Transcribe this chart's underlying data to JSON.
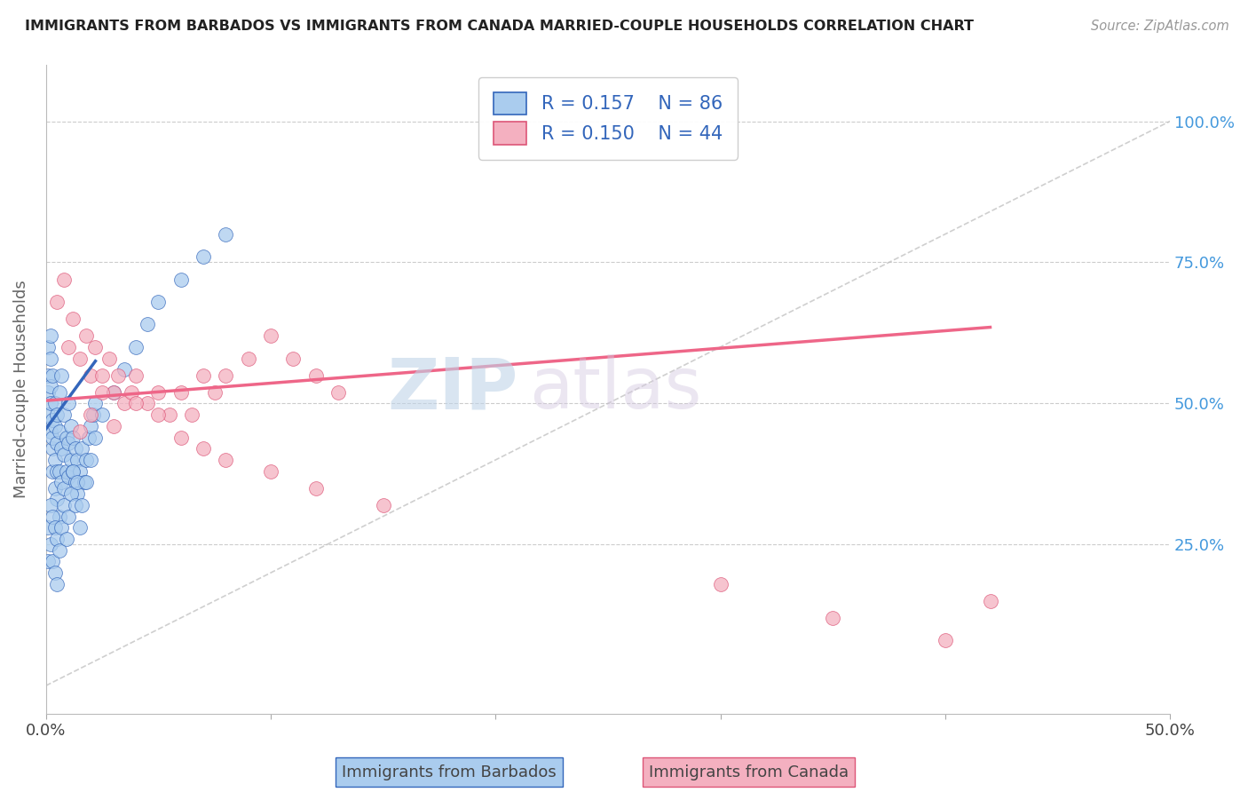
{
  "title": "IMMIGRANTS FROM BARBADOS VS IMMIGRANTS FROM CANADA MARRIED-COUPLE HOUSEHOLDS CORRELATION CHART",
  "source": "Source: ZipAtlas.com",
  "ylabel": "Married-couple Households",
  "xlim": [
    0.0,
    0.5
  ],
  "ylim": [
    -0.05,
    1.1
  ],
  "color_barbados": "#aaccee",
  "color_canada": "#f4b0c0",
  "color_barbados_line": "#3366bb",
  "color_canada_line": "#ee6688",
  "color_diag_line": "#bbbbbb",
  "watermark_zip": "ZIP",
  "watermark_atlas": "atlas",
  "legend_r_barbados": "R = 0.157",
  "legend_n_barbados": "N = 86",
  "legend_r_canada": "R = 0.150",
  "legend_n_canada": "N = 44",
  "barbados_x": [
    0.001,
    0.001,
    0.001,
    0.001,
    0.002,
    0.002,
    0.002,
    0.002,
    0.002,
    0.003,
    0.003,
    0.003,
    0.003,
    0.003,
    0.004,
    0.004,
    0.004,
    0.004,
    0.005,
    0.005,
    0.005,
    0.005,
    0.006,
    0.006,
    0.006,
    0.006,
    0.007,
    0.007,
    0.007,
    0.008,
    0.008,
    0.008,
    0.009,
    0.009,
    0.01,
    0.01,
    0.01,
    0.011,
    0.011,
    0.012,
    0.012,
    0.013,
    0.013,
    0.014,
    0.014,
    0.015,
    0.016,
    0.017,
    0.018,
    0.019,
    0.02,
    0.021,
    0.022,
    0.001,
    0.001,
    0.002,
    0.002,
    0.003,
    0.003,
    0.004,
    0.004,
    0.005,
    0.005,
    0.006,
    0.007,
    0.008,
    0.009,
    0.01,
    0.011,
    0.012,
    0.013,
    0.014,
    0.015,
    0.016,
    0.018,
    0.02,
    0.022,
    0.025,
    0.03,
    0.035,
    0.04,
    0.045,
    0.05,
    0.06,
    0.07,
    0.08
  ],
  "barbados_y": [
    0.55,
    0.6,
    0.48,
    0.52,
    0.62,
    0.58,
    0.45,
    0.5,
    0.53,
    0.47,
    0.42,
    0.55,
    0.38,
    0.44,
    0.5,
    0.4,
    0.35,
    0.46,
    0.43,
    0.48,
    0.38,
    0.33,
    0.52,
    0.45,
    0.38,
    0.3,
    0.55,
    0.42,
    0.36,
    0.48,
    0.41,
    0.35,
    0.44,
    0.38,
    0.5,
    0.43,
    0.37,
    0.46,
    0.4,
    0.44,
    0.38,
    0.42,
    0.36,
    0.4,
    0.34,
    0.38,
    0.42,
    0.36,
    0.4,
    0.44,
    0.46,
    0.48,
    0.5,
    0.28,
    0.22,
    0.32,
    0.25,
    0.3,
    0.22,
    0.28,
    0.2,
    0.26,
    0.18,
    0.24,
    0.28,
    0.32,
    0.26,
    0.3,
    0.34,
    0.38,
    0.32,
    0.36,
    0.28,
    0.32,
    0.36,
    0.4,
    0.44,
    0.48,
    0.52,
    0.56,
    0.6,
    0.64,
    0.68,
    0.72,
    0.76,
    0.8
  ],
  "canada_x": [
    0.005,
    0.008,
    0.01,
    0.012,
    0.015,
    0.018,
    0.02,
    0.022,
    0.025,
    0.028,
    0.03,
    0.032,
    0.035,
    0.038,
    0.04,
    0.045,
    0.05,
    0.055,
    0.06,
    0.065,
    0.07,
    0.075,
    0.08,
    0.09,
    0.1,
    0.11,
    0.12,
    0.13,
    0.015,
    0.02,
    0.025,
    0.03,
    0.04,
    0.05,
    0.06,
    0.07,
    0.08,
    0.1,
    0.12,
    0.15,
    0.3,
    0.35,
    0.4,
    0.42
  ],
  "canada_y": [
    0.68,
    0.72,
    0.6,
    0.65,
    0.58,
    0.62,
    0.55,
    0.6,
    0.55,
    0.58,
    0.52,
    0.55,
    0.5,
    0.52,
    0.55,
    0.5,
    0.52,
    0.48,
    0.52,
    0.48,
    0.55,
    0.52,
    0.55,
    0.58,
    0.62,
    0.58,
    0.55,
    0.52,
    0.45,
    0.48,
    0.52,
    0.46,
    0.5,
    0.48,
    0.44,
    0.42,
    0.4,
    0.38,
    0.35,
    0.32,
    0.18,
    0.12,
    0.08,
    0.15
  ],
  "barbados_line_x": [
    0.0,
    0.022
  ],
  "barbados_line_y": [
    0.455,
    0.575
  ],
  "canada_line_x": [
    0.0,
    0.42
  ],
  "canada_line_y": [
    0.505,
    0.635
  ]
}
